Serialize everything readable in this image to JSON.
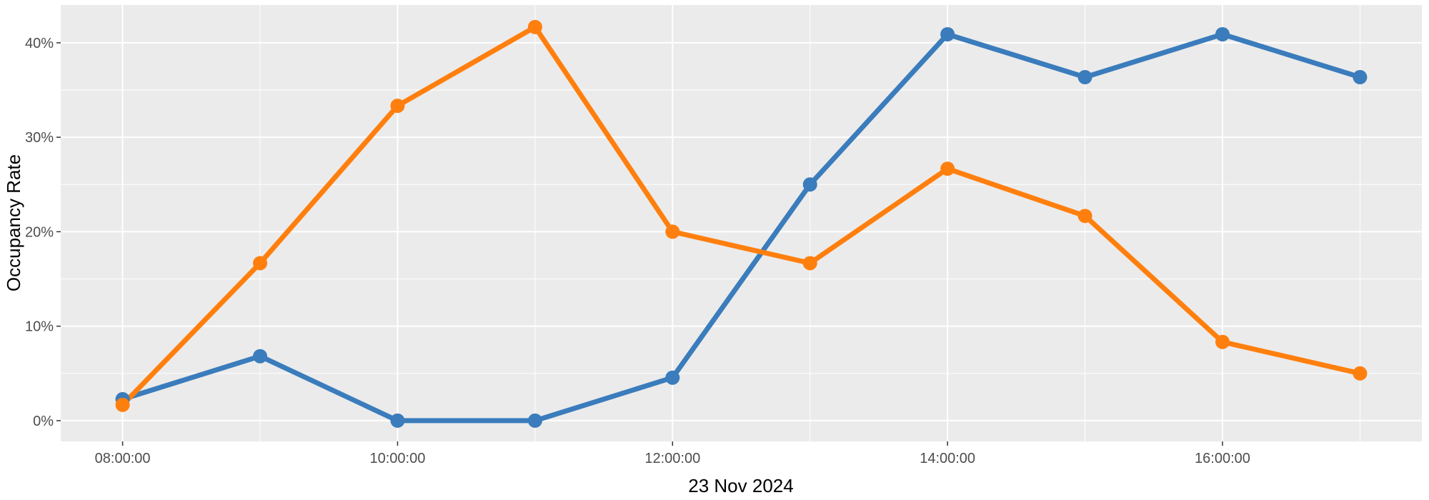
{
  "chart_data": {
    "type": "line",
    "title": "",
    "xlabel": "23 Nov 2024",
    "ylabel": "Occupancy Rate",
    "x": [
      "08:00:00",
      "09:00:00",
      "10:00:00",
      "11:00:00",
      "12:00:00",
      "13:00:00",
      "14:00:00",
      "15:00:00",
      "16:00:00",
      "17:00:00"
    ],
    "x_hours": [
      8,
      9,
      10,
      11,
      12,
      13,
      14,
      15,
      16,
      17
    ],
    "x_ticks": [
      8,
      10,
      12,
      14,
      16
    ],
    "x_tick_labels": [
      "08:00:00",
      "10:00:00",
      "12:00:00",
      "14:00:00",
      "16:00:00"
    ],
    "xlim": [
      7.55,
      17.45
    ],
    "ylim": [
      -0.022,
      0.44
    ],
    "y_ticks": [
      0,
      0.1,
      0.2,
      0.3,
      0.4
    ],
    "y_tick_labels": [
      "0%",
      "10%",
      "20%",
      "30%",
      "40%"
    ],
    "grid": true,
    "legend": "none",
    "background": "#ebebeb",
    "grid_color": "#ffffff",
    "series": [
      {
        "color": "#3a7cbc",
        "values": [
          0.0227,
          0.0682,
          0.0,
          0.0,
          0.0455,
          0.25,
          0.409,
          0.3636,
          0.409,
          0.3636
        ]
      },
      {
        "color": "#ff7f0e",
        "values": [
          0.0167,
          0.1667,
          0.3333,
          0.4167,
          0.2,
          0.1667,
          0.2667,
          0.2167,
          0.0833,
          0.05
        ]
      }
    ]
  }
}
